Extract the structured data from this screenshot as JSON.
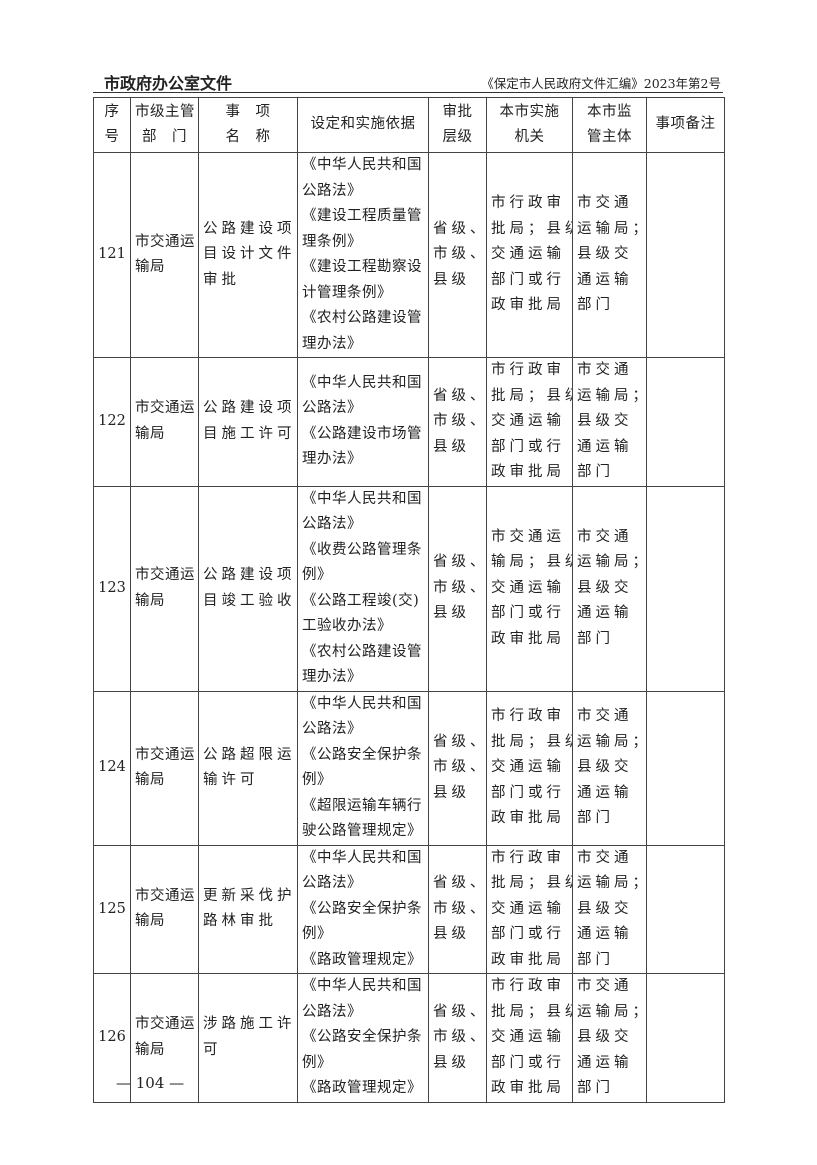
{
  "header": {
    "left": "市政府办公室文件",
    "right": "《保定市人民政府文件汇编》2023年第2号"
  },
  "table": {
    "columns": [
      [
        "序",
        "号"
      ],
      [
        "市级主管",
        "部　门"
      ],
      [
        "事　项",
        "名　称"
      ],
      [
        "设定和实施依据"
      ],
      [
        "审批",
        "层级"
      ],
      [
        "本市实施",
        "机关"
      ],
      [
        "本市监",
        "管主体"
      ],
      [
        "事项备注"
      ]
    ],
    "rows": [
      {
        "no": "121",
        "dept": [
          "市交通运",
          "输局"
        ],
        "item": [
          "公路建设项",
          "目设计文件",
          "审批"
        ],
        "basis": [
          "《中华人民共和国",
          "公路法》",
          "《建设工程质量管",
          "理条例》",
          "《建设工程勘察设",
          "计管理条例》",
          "《农村公路建设管",
          "理办法》"
        ],
        "level": [
          "省级、",
          "市级、",
          "县级"
        ],
        "impl": [
          "市行政审",
          "批局；县级",
          "交通运输",
          "部门或行",
          "政审批局"
        ],
        "super": [
          "市交通",
          "运输局；",
          "县级交",
          "通运输",
          "部门"
        ],
        "note": ""
      },
      {
        "no": "122",
        "dept": [
          "市交通运",
          "输局"
        ],
        "item": [
          "公路建设项",
          "目施工许可"
        ],
        "basis": [
          "《中华人民共和国",
          "公路法》",
          "《公路建设市场管",
          "理办法》"
        ],
        "level": [
          "省级、",
          "市级、",
          "县级"
        ],
        "impl": [
          "市行政审",
          "批局；县级",
          "交通运输",
          "部门或行",
          "政审批局"
        ],
        "super": [
          "市交通",
          "运输局；",
          "县级交",
          "通运输",
          "部门"
        ],
        "note": ""
      },
      {
        "no": "123",
        "dept": [
          "市交通运",
          "输局"
        ],
        "item": [
          "公路建设项",
          "目竣工验收"
        ],
        "basis": [
          "《中华人民共和国",
          "公路法》",
          "《收费公路管理条",
          "例》",
          "《公路工程竣(交)",
          "工验收办法》",
          "《农村公路建设管",
          "理办法》"
        ],
        "level": [
          "省级、",
          "市级、",
          "县级"
        ],
        "impl": [
          "市交通运",
          "输局；县级",
          "交通运输",
          "部门或行",
          "政审批局"
        ],
        "super": [
          "市交通",
          "运输局；",
          "县级交",
          "通运输",
          "部门"
        ],
        "note": ""
      },
      {
        "no": "124",
        "dept": [
          "市交通运",
          "输局"
        ],
        "item": [
          "公路超限运",
          "输许可"
        ],
        "basis": [
          "《中华人民共和国",
          "公路法》",
          "《公路安全保护条",
          "例》",
          "《超限运输车辆行",
          "驶公路管理规定》"
        ],
        "level": [
          "省级、",
          "市级、",
          "县级"
        ],
        "impl": [
          "市行政审",
          "批局；县级",
          "交通运输",
          "部门或行",
          "政审批局"
        ],
        "super": [
          "市交通",
          "运输局；",
          "县级交",
          "通运输",
          "部门"
        ],
        "note": ""
      },
      {
        "no": "125",
        "dept": [
          "市交通运",
          "输局"
        ],
        "item": [
          "更新采伐护",
          "路林审批"
        ],
        "basis": [
          "《中华人民共和国",
          "公路法》",
          "《公路安全保护条",
          "例》",
          "《路政管理规定》"
        ],
        "level": [
          "省级、",
          "市级、",
          "县级"
        ],
        "impl": [
          "市行政审",
          "批局；县级",
          "交通运输",
          "部门或行",
          "政审批局"
        ],
        "super": [
          "市交通",
          "运输局；",
          "县级交",
          "通运输",
          "部门"
        ],
        "note": ""
      },
      {
        "no": "126",
        "dept": [
          "市交通运",
          "输局"
        ],
        "item": [
          "涉路施工许",
          "可"
        ],
        "basis": [
          "《中华人民共和国",
          "公路法》",
          "《公路安全保护条",
          "例》",
          "《路政管理规定》"
        ],
        "level": [
          "省级、",
          "市级、",
          "县级"
        ],
        "impl": [
          "市行政审",
          "批局；县级",
          "交通运输",
          "部门或行",
          "政审批局"
        ],
        "super": [
          "市交通",
          "运输局；",
          "县级交",
          "通运输",
          "部门"
        ],
        "note": ""
      }
    ]
  },
  "footer": {
    "page": "— 104 —"
  }
}
